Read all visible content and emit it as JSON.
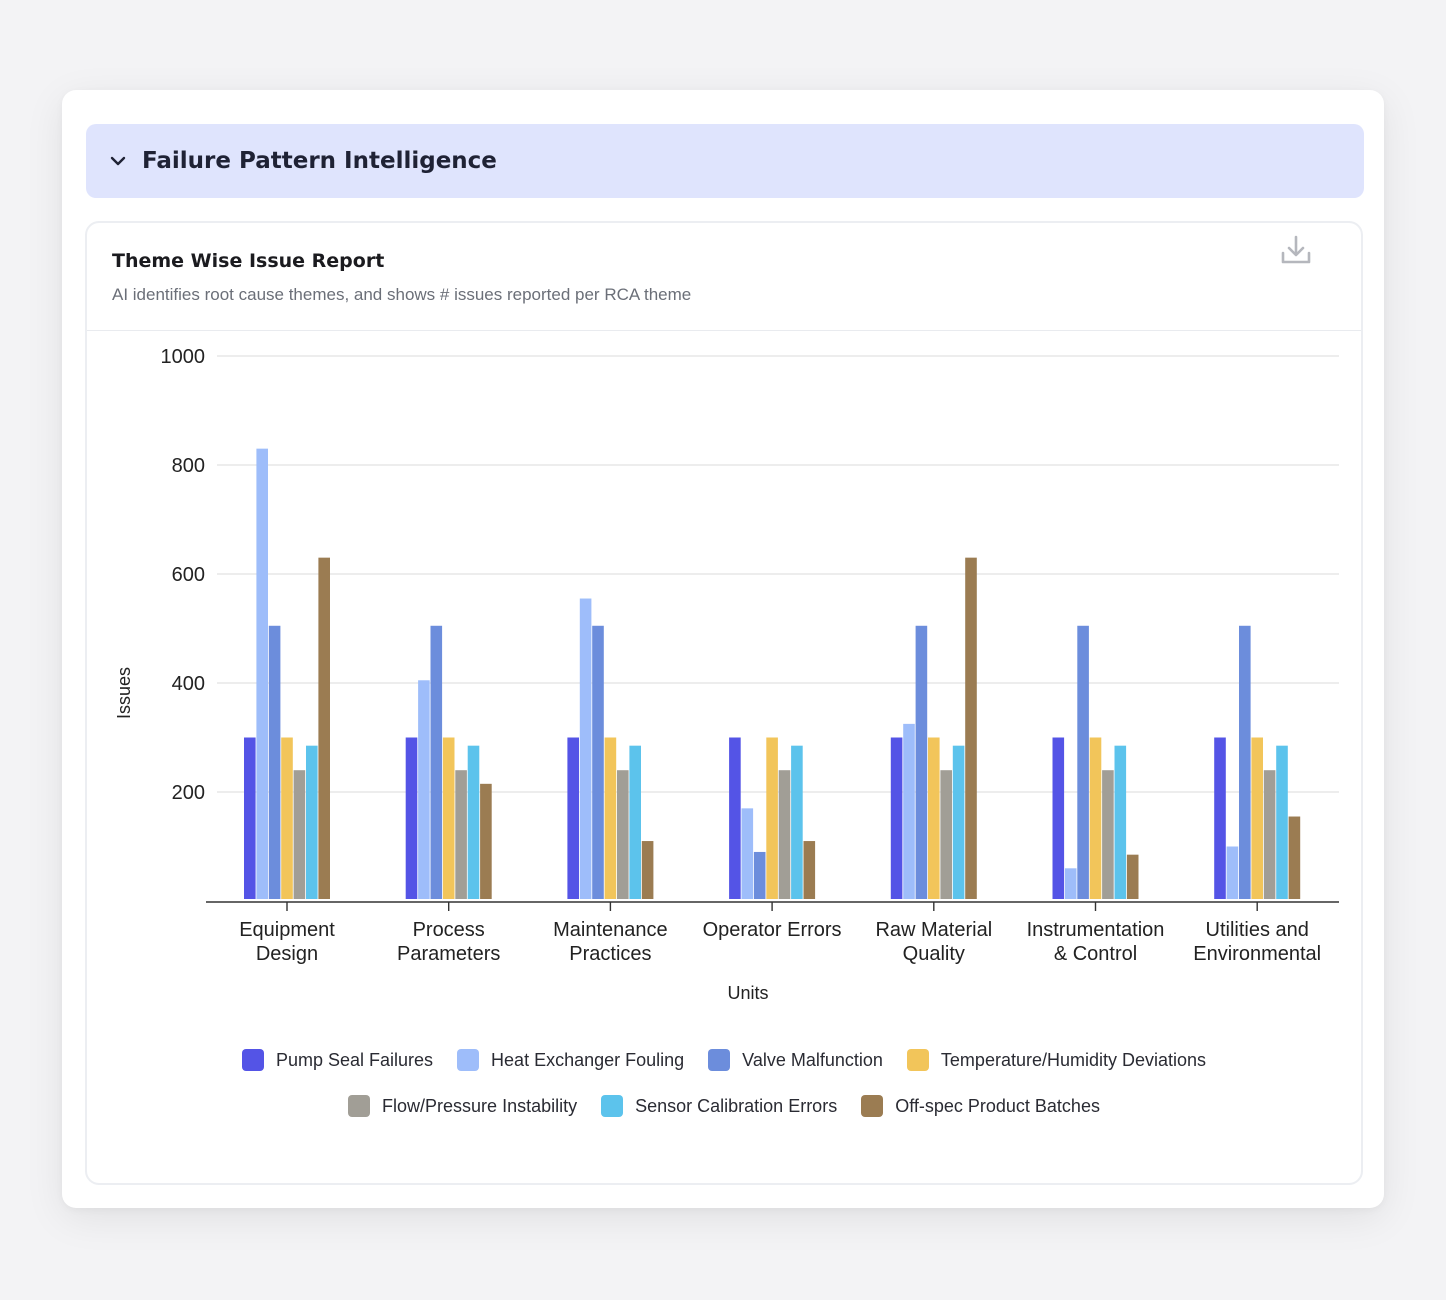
{
  "section": {
    "title": "Failure Pattern Intelligence"
  },
  "card": {
    "title": "Theme Wise Issue Report",
    "subtitle": "AI identifies root cause themes, and shows # issues reported per RCA theme"
  },
  "icons": {
    "collapse": "chevron-down-icon",
    "download": "download-icon"
  },
  "chart_data": {
    "type": "bar",
    "xlabel": "Units",
    "ylabel": "Issues",
    "ylim": [
      0,
      1000
    ],
    "yticks": [
      200,
      400,
      600,
      800,
      1000
    ],
    "grid": true,
    "legend_position": "bottom",
    "categories": [
      [
        "Equipment",
        "Design"
      ],
      [
        "Process",
        "Parameters"
      ],
      [
        "Maintenance",
        "Practices"
      ],
      [
        "Operator Errors"
      ],
      [
        "Raw Material",
        "Quality"
      ],
      [
        "Instrumentation",
        "& Control"
      ],
      [
        "Utilities and",
        "Environmental"
      ]
    ],
    "series": [
      {
        "name": "Pump Seal Failures",
        "color": "#5454e6",
        "values": [
          300,
          300,
          300,
          300,
          300,
          300,
          300
        ]
      },
      {
        "name": "Heat Exchanger Fouling",
        "color": "#9ebdfa",
        "values": [
          830,
          405,
          555,
          170,
          325,
          60,
          100
        ]
      },
      {
        "name": "Valve Malfunction",
        "color": "#6c8ddc",
        "values": [
          505,
          505,
          505,
          90,
          505,
          505,
          505
        ]
      },
      {
        "name": "Temperature/Humidity Deviations",
        "color": "#f2c55a",
        "values": [
          300,
          300,
          300,
          300,
          300,
          300,
          300
        ]
      },
      {
        "name": "Flow/Pressure Instability",
        "color": "#a19e96",
        "values": [
          240,
          240,
          240,
          240,
          240,
          240,
          240
        ]
      },
      {
        "name": "Sensor Calibration Errors",
        "color": "#5cc3ec",
        "values": [
          285,
          285,
          285,
          285,
          285,
          285,
          285
        ]
      },
      {
        "name": "Off-spec Product Batches",
        "color": "#9b7c52",
        "values": [
          630,
          215,
          110,
          110,
          630,
          85,
          155
        ]
      }
    ]
  }
}
